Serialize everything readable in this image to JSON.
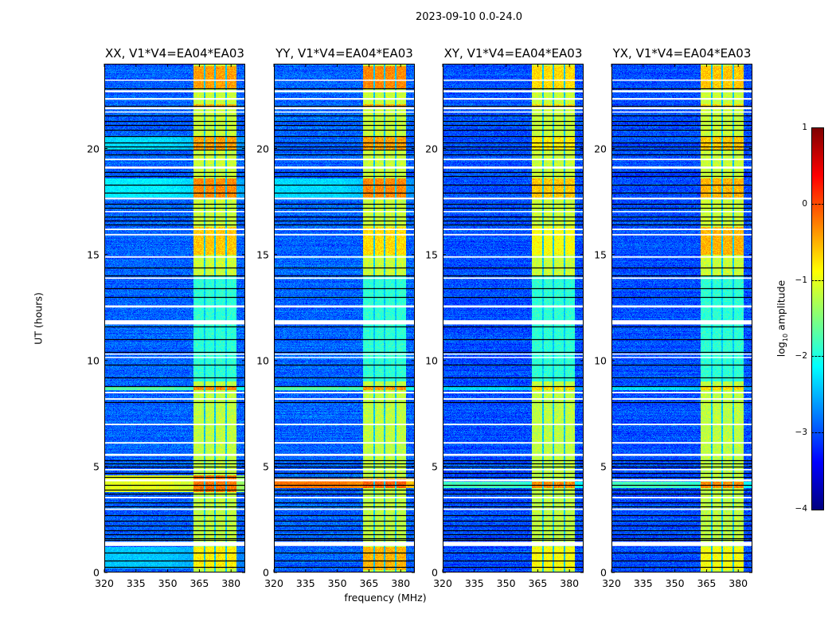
{
  "suptitle": "2023-09-10 0.0-24.0",
  "chart_data": {
    "type": "heatmap",
    "title": "2023-09-10 0.0-24.0",
    "xlabel": "frequency (MHz)",
    "ylabel": "UT (hours)",
    "xlim": [
      320,
      386.7
    ],
    "ylim": [
      0,
      24
    ],
    "xticks": [
      "320",
      "335",
      "350",
      "365",
      "380"
    ],
    "yticks": [
      "0",
      "5",
      "10",
      "15",
      "20"
    ],
    "colorbar": {
      "label_main": "log",
      "label_sub": "10",
      "label_rest": " amplitude",
      "range": [
        -4,
        1
      ],
      "colormap": "jet",
      "ticks": [
        "1",
        "0",
        "−1",
        "−2",
        "−3",
        "−4"
      ]
    },
    "band_mhz": [
      362.3,
      382.6
    ],
    "band_dark_channels_mhz": [
      367.5,
      372.5,
      377.7
    ],
    "band_level_by_time": [
      {
        "t": [
          0,
          9
        ],
        "level": -1.2
      },
      {
        "t": [
          9,
          14
        ],
        "level": -1.9
      },
      {
        "t": [
          14,
          24
        ],
        "level": -1.15
      }
    ],
    "flagged_hours": [
      [
        23.2,
        23.25
      ],
      [
        22.65,
        22.75
      ],
      [
        22.3,
        22.38
      ],
      [
        21.85,
        21.95
      ],
      [
        21.7,
        21.75
      ],
      [
        19.45,
        19.52
      ],
      [
        19.05,
        19.15
      ],
      [
        17.6,
        17.68
      ],
      [
        17.0,
        17.05
      ],
      [
        16.15,
        16.22
      ],
      [
        15.9,
        15.97
      ],
      [
        14.85,
        14.92
      ],
      [
        13.85,
        13.92
      ],
      [
        12.5,
        12.6
      ],
      [
        11.7,
        11.9
      ],
      [
        10.28,
        10.33
      ],
      [
        10.12,
        10.17
      ],
      [
        8.45,
        8.52
      ],
      [
        8.15,
        8.22
      ],
      [
        6.95,
        7.02
      ],
      [
        6.08,
        6.15
      ],
      [
        5.5,
        5.6
      ],
      [
        4.82,
        4.88
      ],
      [
        4.3,
        4.4
      ],
      [
        3.5,
        3.57
      ],
      [
        2.95,
        3.02
      ],
      [
        1.25,
        1.45
      ]
    ],
    "gap_hours": [
      22.85,
      22.0,
      21.55,
      21.3,
      21.1,
      20.9,
      20.6,
      20.3,
      20.1,
      19.95,
      19.7,
      18.9,
      18.7,
      18.3,
      17.9,
      17.4,
      17.2,
      16.8,
      16.6,
      16.4,
      14.4,
      14.0,
      13.4,
      13.0,
      11.6,
      11.0,
      10.4,
      9.8,
      9.2,
      8.8,
      8.05,
      5.3,
      5.15,
      5.0,
      4.7,
      4.5,
      4.15,
      3.9,
      3.7,
      3.3,
      3.1,
      2.7,
      2.45,
      2.2,
      2.0,
      1.8,
      1.6,
      1.55,
      0.95,
      0.55,
      0.25
    ],
    "panels": [
      {
        "title": "XX, V1*V4=EA04*EA03",
        "background_level": -2.9,
        "rfi": [
          {
            "t": [
              22.8,
              23.9
            ],
            "band": -0.4
          },
          {
            "t": [
              21.95,
              22.1
            ],
            "band": -0.5
          },
          {
            "t": [
              19.9,
              20.6
            ],
            "band": -0.4,
            "all": -2.3
          },
          {
            "t": [
              17.7,
              18.6
            ],
            "band": -0.3,
            "all": -2.2
          },
          {
            "t": [
              15.0,
              16.3
            ],
            "band": -0.6
          },
          {
            "t": [
              8.6,
              8.8
            ],
            "band": -0.3,
            "all": -1.7
          },
          {
            "t": [
              3.8,
              4.6
            ],
            "band": -0.2,
            "all": -1.0
          },
          {
            "t": [
              0.2,
              1.2
            ],
            "band": -0.8,
            "all": -2.4
          }
        ]
      },
      {
        "title": "YY, V1*V4=EA04*EA03",
        "background_level": -2.9,
        "rfi": [
          {
            "t": [
              22.8,
              23.9
            ],
            "band": -0.3
          },
          {
            "t": [
              21.95,
              22.1
            ],
            "band": -0.5
          },
          {
            "t": [
              19.9,
              20.6
            ],
            "band": -0.4
          },
          {
            "t": [
              17.7,
              18.6
            ],
            "band": -0.3,
            "all": -2.3
          },
          {
            "t": [
              15.0,
              16.3
            ],
            "band": -0.7
          },
          {
            "t": [
              8.6,
              8.8
            ],
            "band": -0.4,
            "all": -1.7
          },
          {
            "t": [
              4.0,
              4.45
            ],
            "band": -0.1,
            "all": -0.2
          },
          {
            "t": [
              0.1,
              1.2
            ],
            "band": -0.5
          }
        ]
      },
      {
        "title": "XY, V1*V4=EA04*EA03",
        "background_level": -3.0,
        "rfi": [
          {
            "t": [
              22.8,
              23.9
            ],
            "band": -0.7
          },
          {
            "t": [
              21.95,
              22.1
            ],
            "band": -0.7
          },
          {
            "t": [
              19.9,
              20.6
            ],
            "band": -0.8
          },
          {
            "t": [
              17.7,
              18.6
            ],
            "band": -0.6
          },
          {
            "t": [
              15.0,
              16.3
            ],
            "band": -0.9
          },
          {
            "t": [
              8.6,
              8.8
            ],
            "band": -0.7,
            "all": -2.3
          },
          {
            "t": [
              4.0,
              4.3
            ],
            "band": -0.3,
            "all": -1.8
          },
          {
            "t": [
              0.1,
              1.2
            ],
            "band": -0.9
          }
        ]
      },
      {
        "title": "YX, V1*V4=EA04*EA03",
        "background_level": -3.0,
        "rfi": [
          {
            "t": [
              22.8,
              23.9
            ],
            "band": -0.6
          },
          {
            "t": [
              21.95,
              22.1
            ],
            "band": -0.7
          },
          {
            "t": [
              19.9,
              20.6
            ],
            "band": -0.6
          },
          {
            "t": [
              17.7,
              18.6
            ],
            "band": -0.5
          },
          {
            "t": [
              15.0,
              16.3
            ],
            "band": -0.5
          },
          {
            "t": [
              8.6,
              8.8
            ],
            "band": -0.7,
            "all": -2.3
          },
          {
            "t": [
              4.0,
              4.3
            ],
            "band": -0.3,
            "all": -1.8
          },
          {
            "t": [
              0.1,
              1.2
            ],
            "band": -0.9
          }
        ]
      }
    ]
  }
}
